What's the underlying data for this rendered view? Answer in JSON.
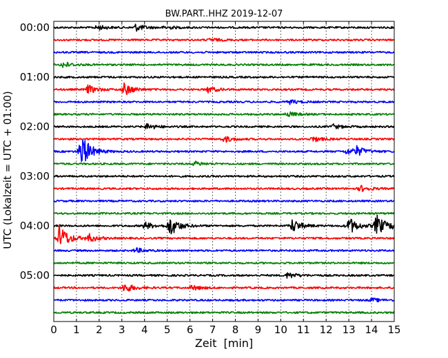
{
  "chart_data": {
    "type": "line",
    "title": "BW.PART..HHZ 2019-12-07",
    "xlabel": "Zeit  [min]",
    "ylabel": "UTC (Lokalzeit = UTC + 01:00)",
    "xlim": [
      0,
      15
    ],
    "x_ticks": [
      0,
      1,
      2,
      3,
      4,
      5,
      6,
      7,
      8,
      9,
      10,
      11,
      12,
      13,
      14,
      15
    ],
    "x_tick_labels": [
      "0",
      "1",
      "2",
      "3",
      "4",
      "5",
      "6",
      "7",
      "8",
      "9",
      "10",
      "11",
      "12",
      "13",
      "14",
      "15"
    ],
    "y_tick_labels": [
      "00:00",
      "01:00",
      "02:00",
      "03:00",
      "04:00",
      "05:00"
    ],
    "grid": true,
    "colors": [
      "#000000",
      "#ff0000",
      "#0000ff",
      "#008000"
    ],
    "trace_count": 24,
    "trace_interval_min": 15,
    "events": [
      {
        "trace": 0,
        "t": 1.9,
        "amp": 0.2
      },
      {
        "trace": 0,
        "t": 3.6,
        "amp": 0.28
      },
      {
        "trace": 0,
        "t": 4.9,
        "amp": 0.14
      },
      {
        "trace": 1,
        "t": 6.9,
        "amp": 0.14
      },
      {
        "trace": 3,
        "t": 0.4,
        "amp": 0.24
      },
      {
        "trace": 5,
        "t": 1.5,
        "amp": 0.35
      },
      {
        "trace": 5,
        "t": 3.1,
        "amp": 0.5
      },
      {
        "trace": 5,
        "t": 6.8,
        "amp": 0.25
      },
      {
        "trace": 6,
        "t": 10.4,
        "amp": 0.16
      },
      {
        "trace": 7,
        "t": 10.3,
        "amp": 0.2
      },
      {
        "trace": 8,
        "t": 4.1,
        "amp": 0.25
      },
      {
        "trace": 8,
        "t": 12.3,
        "amp": 0.18
      },
      {
        "trace": 9,
        "t": 7.5,
        "amp": 0.25
      },
      {
        "trace": 9,
        "t": 11.4,
        "amp": 0.22
      },
      {
        "trace": 10,
        "t": 1.2,
        "amp": 1.5
      },
      {
        "trace": 10,
        "t": 12.9,
        "amp": 0.22
      },
      {
        "trace": 10,
        "t": 13.3,
        "amp": 0.4
      },
      {
        "trace": 11,
        "t": 6.2,
        "amp": 0.18
      },
      {
        "trace": 13,
        "t": 13.5,
        "amp": 0.25
      },
      {
        "trace": 16,
        "t": 4.0,
        "amp": 0.3
      },
      {
        "trace": 16,
        "t": 5.1,
        "amp": 0.85
      },
      {
        "trace": 16,
        "t": 10.5,
        "amp": 0.55
      },
      {
        "trace": 16,
        "t": 13.0,
        "amp": 0.7
      },
      {
        "trace": 16,
        "t": 14.2,
        "amp": 0.9
      },
      {
        "trace": 16,
        "t": 15.0,
        "amp": 0.45
      },
      {
        "trace": 17,
        "t": 0.25,
        "amp": 1.1
      },
      {
        "trace": 17,
        "t": 1.5,
        "amp": 0.35
      },
      {
        "trace": 18,
        "t": 3.6,
        "amp": 0.2
      },
      {
        "trace": 20,
        "t": 10.3,
        "amp": 0.25
      },
      {
        "trace": 21,
        "t": 3.1,
        "amp": 0.4
      },
      {
        "trace": 21,
        "t": 6.1,
        "amp": 0.2
      },
      {
        "trace": 22,
        "t": 14.0,
        "amp": 0.15
      }
    ]
  }
}
